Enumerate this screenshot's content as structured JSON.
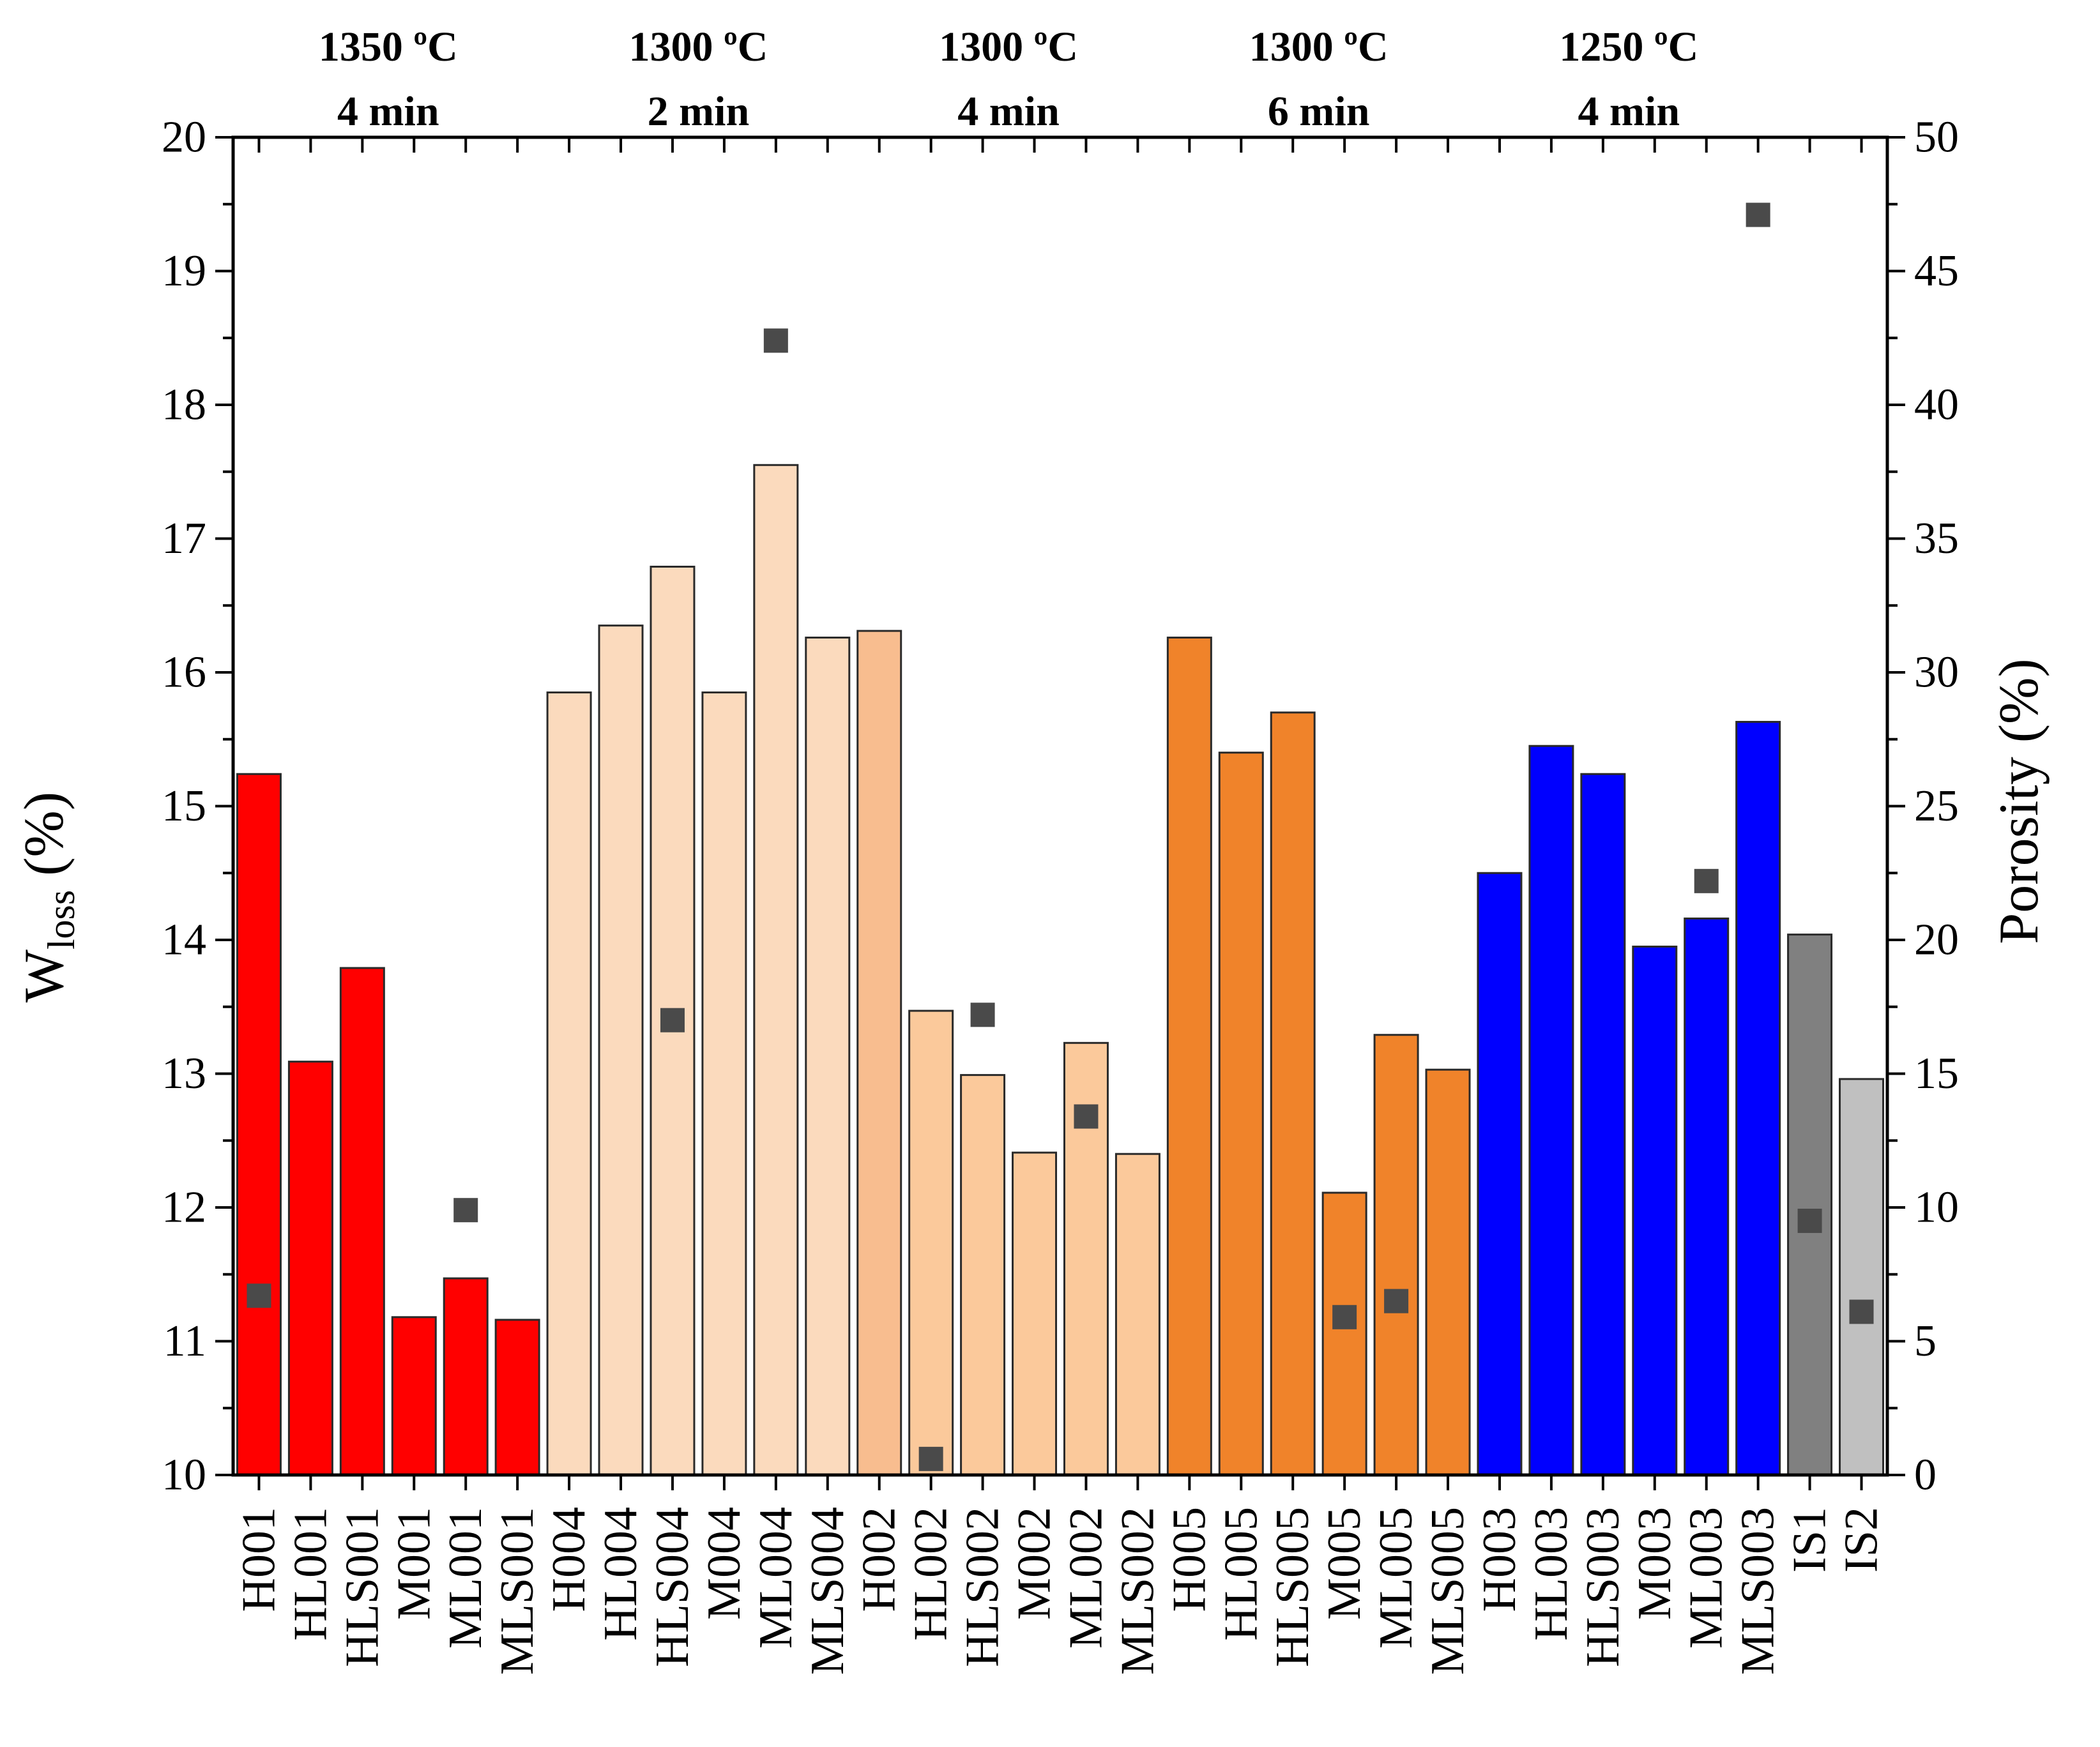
{
  "chart_data": {
    "type": "bar",
    "categories": [
      "H001",
      "HL001",
      "HLS001",
      "M001",
      "ML001",
      "MLS001",
      "H004",
      "HL004",
      "HLS004",
      "M004",
      "ML004",
      "MLS004",
      "H002",
      "HL002",
      "HLS002",
      "M002",
      "ML002",
      "MLS002",
      "H005",
      "HL005",
      "HLS005",
      "M005",
      "ML005",
      "MLS005",
      "H003",
      "HL003",
      "HLS003",
      "M003",
      "ML003",
      "MLS003",
      "IS1",
      "IS2"
    ],
    "series": [
      {
        "name": "W_loss",
        "axis": "left",
        "values": [
          15.24,
          13.09,
          13.79,
          11.18,
          11.47,
          11.16,
          15.85,
          16.35,
          16.79,
          15.85,
          17.55,
          16.26,
          16.31,
          13.47,
          12.99,
          12.41,
          13.23,
          12.4,
          16.26,
          15.4,
          15.7,
          12.11,
          13.29,
          13.03,
          14.5,
          15.45,
          15.24,
          13.95,
          14.16,
          15.63,
          14.04,
          12.96
        ]
      },
      {
        "name": "Porosity",
        "axis": "right",
        "values": [
          6.7,
          null,
          null,
          null,
          9.9,
          null,
          null,
          null,
          17.0,
          null,
          42.4,
          null,
          null,
          0.6,
          17.2,
          null,
          13.4,
          null,
          null,
          null,
          null,
          5.9,
          6.5,
          null,
          null,
          null,
          null,
          null,
          22.2,
          47.1,
          9.5,
          6.1
        ]
      }
    ],
    "bar_colors": [
      "#ff0000",
      "#ff0000",
      "#ff0000",
      "#ff0000",
      "#ff0000",
      "#ff0000",
      "#fbdabd",
      "#fbdabd",
      "#fbdabd",
      "#fbdabd",
      "#fbdabd",
      "#fbdabd",
      "#f8bd8f",
      "#fbc99b",
      "#fbc99b",
      "#fbc99b",
      "#fbc99b",
      "#fbc99b",
      "#f0832a",
      "#f0832a",
      "#f0832a",
      "#f0832a",
      "#f0832a",
      "#f0832a",
      "#0000ff",
      "#0000ff",
      "#0000ff",
      "#0000ff",
      "#0000ff",
      "#0000ff",
      "#808080",
      "#c0c0c0"
    ],
    "marker_color": "#4a4a4a",
    "groups": [
      {
        "line1": "1350 ºC",
        "line2": "4 min",
        "first": 0,
        "last": 5
      },
      {
        "line1": "1300 ºC",
        "line2": "2 min",
        "first": 6,
        "last": 11
      },
      {
        "line1": "1300 ºC",
        "line2": "4 min",
        "first": 12,
        "last": 17
      },
      {
        "line1": "1300 ºC",
        "line2": "6 min",
        "first": 18,
        "last": 23
      },
      {
        "line1": "1250 ºC",
        "line2": "4 min",
        "first": 24,
        "last": 29
      }
    ],
    "ylabel_left": {
      "main": "W",
      "sub": "loss",
      "suffix": " (%)"
    },
    "ylabel_right": "Porosity (%)",
    "ylim_left": [
      10,
      20
    ],
    "ylim_right": [
      0,
      50
    ],
    "yticks_left": [
      "10",
      "11",
      "12",
      "13",
      "14",
      "15",
      "16",
      "17",
      "18",
      "19",
      "20"
    ],
    "yticks_right": [
      "0",
      "5",
      "10",
      "15",
      "20",
      "25",
      "30",
      "35",
      "40",
      "45",
      "50"
    ]
  }
}
